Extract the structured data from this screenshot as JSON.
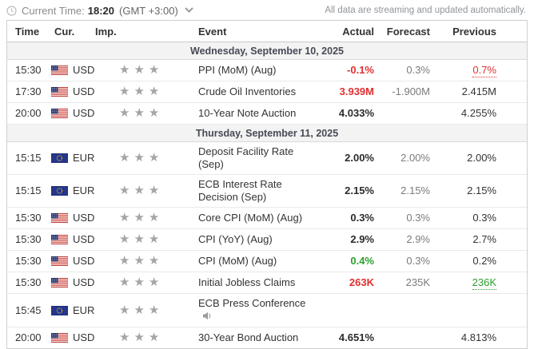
{
  "topbar": {
    "current_time_label": "Current Time:",
    "current_time_value": "18:20",
    "timezone": "(GMT +3:00)",
    "streaming_note": "All data are streaming and updated automatically."
  },
  "colors": {
    "negative": "#e03030",
    "positive": "#2ba12b",
    "forecast_gray": "#7b7b7b",
    "day_header_bg": "#f3f3f3",
    "star_gray": "#a5a5a5",
    "eu_flag_blue": "#26368a",
    "us_flag_red": "#c9342c"
  },
  "icons": {
    "clock": "clock-icon",
    "chevron": "chevron-down-icon",
    "speaker": "speaker-icon",
    "us": "us-flag-icon",
    "eu": "eu-flag-icon"
  },
  "table": {
    "headers": [
      "Time",
      "Cur.",
      "Imp.",
      "Event",
      "Actual",
      "Forecast",
      "Previous"
    ],
    "rows": [
      {
        "type": "day",
        "label": "Wednesday, September 10, 2025"
      },
      {
        "type": "event",
        "time": "15:30",
        "currency": "USD",
        "flag": "us",
        "importance": 3,
        "event": "PPI (MoM) (Aug)",
        "actual": {
          "text": "-0.1%",
          "state": "negative"
        },
        "forecast": "0.3%",
        "previous": {
          "text": "0.7%",
          "state": "negative",
          "underline": true
        }
      },
      {
        "type": "event",
        "time": "17:30",
        "currency": "USD",
        "flag": "us",
        "importance": 3,
        "event": "Crude Oil Inventories",
        "actual": {
          "text": "3.939M",
          "state": "negative"
        },
        "forecast": "-1.900M",
        "previous": {
          "text": "2.415M",
          "state": "neutral"
        }
      },
      {
        "type": "event",
        "time": "20:00",
        "currency": "USD",
        "flag": "us",
        "importance": 3,
        "event": "10-Year Note Auction",
        "actual": {
          "text": "4.033%",
          "state": "neutral"
        },
        "forecast": "",
        "previous": {
          "text": "4.255%",
          "state": "neutral"
        }
      },
      {
        "type": "day",
        "label": "Thursday, September 11, 2025"
      },
      {
        "type": "event",
        "time": "15:15",
        "currency": "EUR",
        "flag": "eu",
        "importance": 3,
        "event": "Deposit Facility Rate (Sep)",
        "actual": {
          "text": "2.00%",
          "state": "neutral"
        },
        "forecast": "2.00%",
        "previous": {
          "text": "2.00%",
          "state": "neutral"
        }
      },
      {
        "type": "event",
        "time": "15:15",
        "currency": "EUR",
        "flag": "eu",
        "importance": 3,
        "event": "ECB Interest Rate Decision (Sep)",
        "actual": {
          "text": "2.15%",
          "state": "neutral"
        },
        "forecast": "2.15%",
        "previous": {
          "text": "2.15%",
          "state": "neutral"
        }
      },
      {
        "type": "event",
        "time": "15:30",
        "currency": "USD",
        "flag": "us",
        "importance": 3,
        "event": "Core CPI (MoM) (Aug)",
        "actual": {
          "text": "0.3%",
          "state": "neutral"
        },
        "forecast": "0.3%",
        "previous": {
          "text": "0.3%",
          "state": "neutral"
        }
      },
      {
        "type": "event",
        "time": "15:30",
        "currency": "USD",
        "flag": "us",
        "importance": 3,
        "event": "CPI (YoY) (Aug)",
        "actual": {
          "text": "2.9%",
          "state": "neutral"
        },
        "forecast": "2.9%",
        "previous": {
          "text": "2.7%",
          "state": "neutral"
        }
      },
      {
        "type": "event",
        "time": "15:30",
        "currency": "USD",
        "flag": "us",
        "importance": 3,
        "event": "CPI (MoM) (Aug)",
        "actual": {
          "text": "0.4%",
          "state": "positive"
        },
        "forecast": "0.3%",
        "previous": {
          "text": "0.2%",
          "state": "neutral"
        }
      },
      {
        "type": "event",
        "time": "15:30",
        "currency": "USD",
        "flag": "us",
        "importance": 3,
        "event": "Initial Jobless Claims",
        "actual": {
          "text": "263K",
          "state": "negative"
        },
        "forecast": "235K",
        "previous": {
          "text": "236K",
          "state": "positive",
          "underline": true
        }
      },
      {
        "type": "event",
        "time": "15:45",
        "currency": "EUR",
        "flag": "eu",
        "importance": 3,
        "event": "ECB Press Conference",
        "speaker": true,
        "actual": null,
        "forecast": "",
        "previous": null
      },
      {
        "type": "event",
        "time": "20:00",
        "currency": "USD",
        "flag": "us",
        "importance": 3,
        "event": "30-Year Bond Auction",
        "actual": {
          "text": "4.651%",
          "state": "neutral"
        },
        "forecast": "",
        "previous": {
          "text": "4.813%",
          "state": "neutral"
        }
      }
    ]
  }
}
